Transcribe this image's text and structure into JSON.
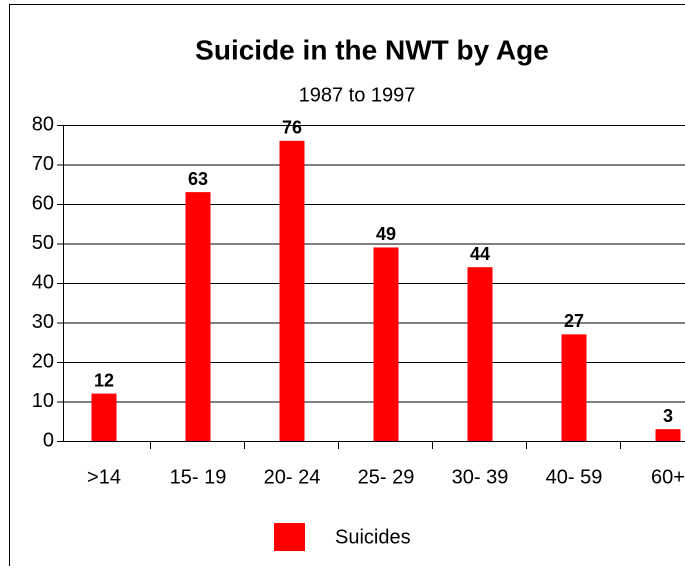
{
  "chart_data": {
    "type": "bar",
    "title": "Suicide in the NWT by Age",
    "subtitle": "1987 to 1997",
    "categories": [
      ">14",
      "15- 19",
      "20- 24",
      "25- 29",
      "30- 39",
      "40- 59",
      "60+"
    ],
    "series": [
      {
        "name": "Suicides",
        "color": "#ff0000",
        "values": [
          12,
          63,
          76,
          49,
          44,
          27,
          3
        ]
      }
    ],
    "ylim": [
      0,
      80
    ],
    "yticks": [
      0,
      10,
      20,
      30,
      40,
      50,
      60,
      70,
      80
    ],
    "grid": true,
    "legend": "bottom",
    "data_labels": true
  }
}
